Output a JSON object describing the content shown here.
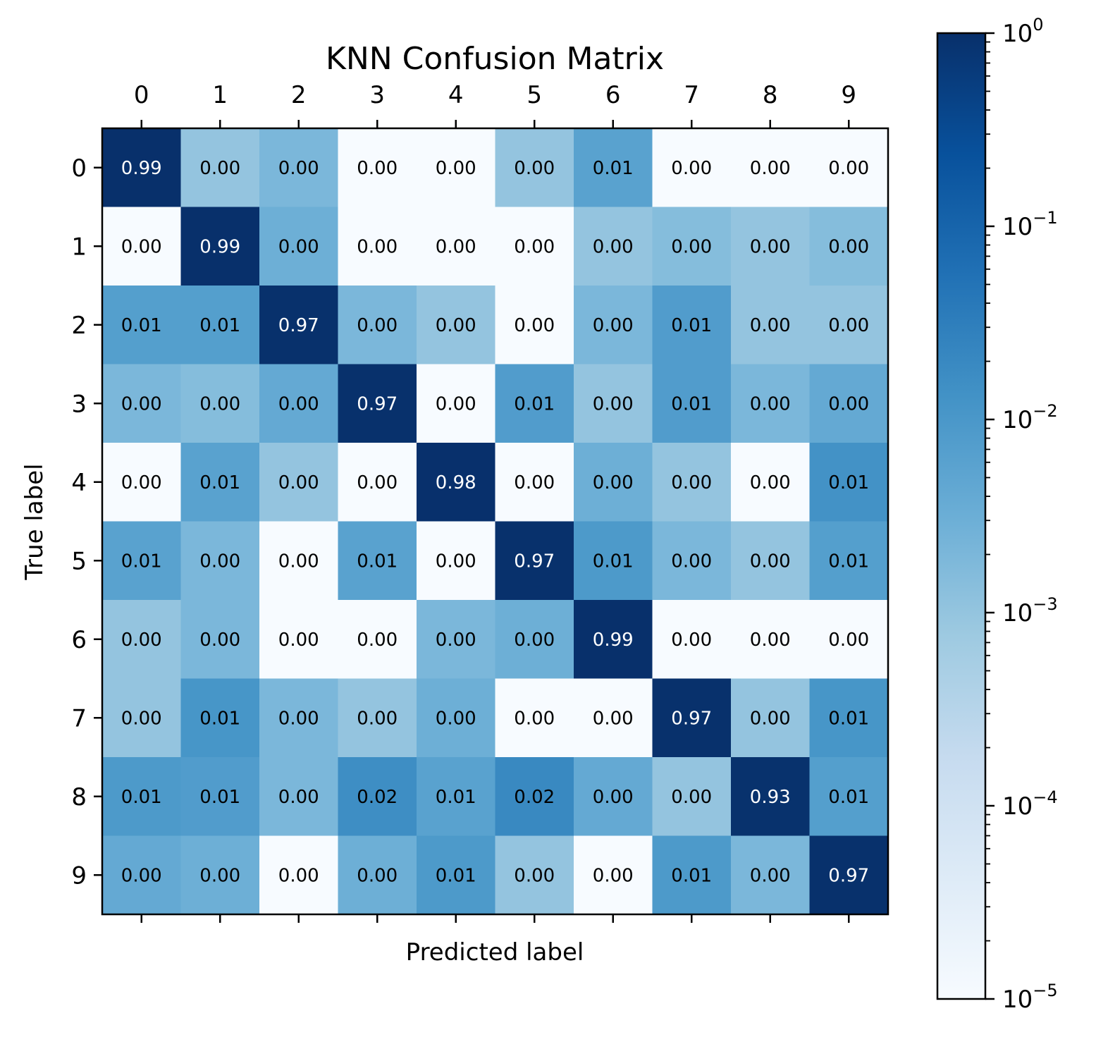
{
  "chart_data": {
    "type": "heatmap",
    "title": "KNN Confusion Matrix",
    "xlabel": "Predicted label",
    "ylabel": "True label",
    "x_categories": [
      "0",
      "1",
      "2",
      "3",
      "4",
      "5",
      "6",
      "7",
      "8",
      "9"
    ],
    "y_categories": [
      "0",
      "1",
      "2",
      "3",
      "4",
      "5",
      "6",
      "7",
      "8",
      "9"
    ],
    "x_axis_position": "top",
    "colormap": "Blues",
    "color_scale": "log",
    "color_range": [
      1e-05,
      1
    ],
    "colorbar": {
      "position": "right",
      "ticks": [
        {
          "value": 1,
          "base": "10",
          "exp": "0"
        },
        {
          "value": 0.1,
          "base": "10",
          "exp": "−1"
        },
        {
          "value": 0.01,
          "base": "10",
          "exp": "−2"
        },
        {
          "value": 0.001,
          "base": "10",
          "exp": "−3"
        },
        {
          "value": 0.0001,
          "base": "10",
          "exp": "−4"
        },
        {
          "value": 1e-05,
          "base": "10",
          "exp": "−5"
        }
      ]
    },
    "labels": [
      [
        "0.99",
        "0.00",
        "0.00",
        "0.00",
        "0.00",
        "0.00",
        "0.01",
        "0.00",
        "0.00",
        "0.00"
      ],
      [
        "0.00",
        "0.99",
        "0.00",
        "0.00",
        "0.00",
        "0.00",
        "0.00",
        "0.00",
        "0.00",
        "0.00"
      ],
      [
        "0.01",
        "0.01",
        "0.97",
        "0.00",
        "0.00",
        "0.00",
        "0.00",
        "0.01",
        "0.00",
        "0.00"
      ],
      [
        "0.00",
        "0.00",
        "0.00",
        "0.97",
        "0.00",
        "0.01",
        "0.00",
        "0.01",
        "0.00",
        "0.00"
      ],
      [
        "0.00",
        "0.01",
        "0.00",
        "0.00",
        "0.98",
        "0.00",
        "0.00",
        "0.00",
        "0.00",
        "0.01"
      ],
      [
        "0.01",
        "0.00",
        "0.00",
        "0.01",
        "0.00",
        "0.97",
        "0.01",
        "0.00",
        "0.00",
        "0.01"
      ],
      [
        "0.00",
        "0.00",
        "0.00",
        "0.00",
        "0.00",
        "0.00",
        "0.99",
        "0.00",
        "0.00",
        "0.00"
      ],
      [
        "0.00",
        "0.01",
        "0.00",
        "0.00",
        "0.00",
        "0.00",
        "0.00",
        "0.97",
        "0.00",
        "0.01"
      ],
      [
        "0.01",
        "0.01",
        "0.00",
        "0.02",
        "0.01",
        "0.02",
        "0.00",
        "0.00",
        "0.93",
        "0.01"
      ],
      [
        "0.00",
        "0.00",
        "0.00",
        "0.00",
        "0.01",
        "0.00",
        "0.00",
        "0.01",
        "0.00",
        "0.97"
      ]
    ],
    "values": [
      [
        0.99,
        0.001,
        0.002,
        1e-05,
        1e-05,
        0.001,
        0.006,
        1e-05,
        1e-05,
        1e-05
      ],
      [
        1e-05,
        0.99,
        0.003,
        1e-05,
        1e-05,
        1e-05,
        0.001,
        0.0015,
        0.001,
        0.0015
      ],
      [
        0.007,
        0.007,
        0.97,
        0.002,
        0.001,
        1e-05,
        0.002,
        0.008,
        0.001,
        0.001
      ],
      [
        0.002,
        0.0015,
        0.004,
        0.97,
        1e-05,
        0.008,
        0.001,
        0.008,
        0.002,
        0.004
      ],
      [
        1e-05,
        0.006,
        0.001,
        1e-05,
        0.98,
        1e-05,
        0.003,
        0.001,
        1e-05,
        0.013
      ],
      [
        0.006,
        0.002,
        1e-05,
        0.006,
        1e-05,
        0.97,
        0.009,
        0.002,
        0.001,
        0.007
      ],
      [
        0.001,
        0.002,
        1e-05,
        1e-05,
        0.002,
        0.003,
        0.99,
        1e-05,
        1e-05,
        1e-05
      ],
      [
        0.001,
        0.011,
        0.002,
        0.001,
        0.003,
        1e-05,
        1e-05,
        0.97,
        0.001,
        0.011
      ],
      [
        0.009,
        0.008,
        0.002,
        0.016,
        0.006,
        0.02,
        0.004,
        0.001,
        0.93,
        0.007
      ],
      [
        0.004,
        0.003,
        1e-05,
        0.003,
        0.009,
        0.001,
        1e-05,
        0.009,
        0.002,
        0.97
      ]
    ]
  }
}
